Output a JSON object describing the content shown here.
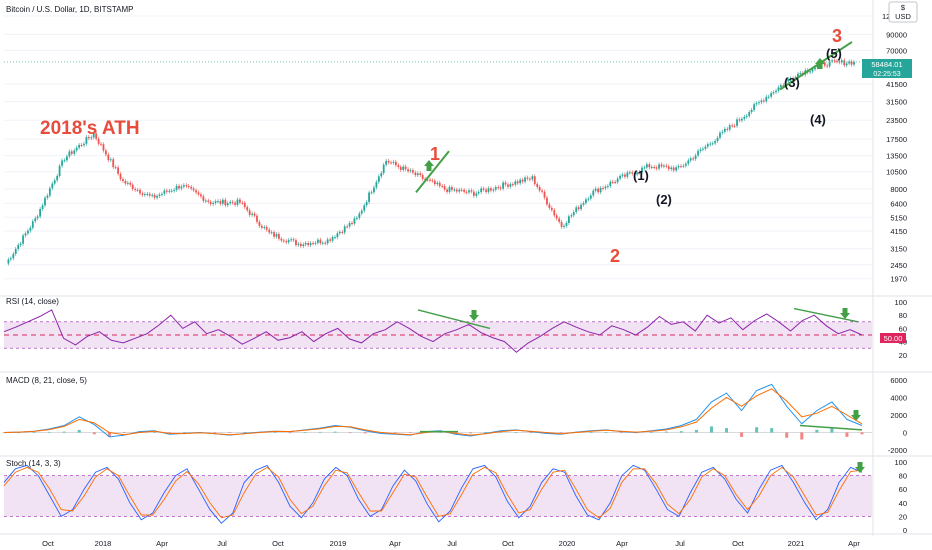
{
  "header": {
    "title": "Bitcoin / U.S. Dollar, 1D, BITSTAMP",
    "currency_symbol": "$",
    "currency": "USD"
  },
  "price_panel": {
    "last_price": "58484.01",
    "countdown": "02:25:53"
  },
  "annotations": {
    "ath": "2018's ATH",
    "wave1": "1",
    "wave2": "2",
    "wave3": "3",
    "sub1": "(1)",
    "sub2": "(2)",
    "sub3": "(3)",
    "sub4": "(4)",
    "sub5": "(5)"
  },
  "indicators": {
    "rsi": {
      "label": "RSI (14, close)",
      "current": "50.00",
      "ticks": [
        "100",
        "80",
        "60",
        "40",
        "20"
      ]
    },
    "macd": {
      "label": "MACD (8, 21, close, 5)",
      "ticks": [
        "6000",
        "4000",
        "2000",
        "0",
        "-2000"
      ]
    },
    "stoch": {
      "label": "Stoch (14, 3, 3)",
      "ticks": [
        "100",
        "80",
        "60",
        "40",
        "20",
        "0"
      ]
    }
  },
  "colors": {
    "price_up": "#26a69a",
    "price_down": "#ef5350",
    "rsi_line": "#8e24aa",
    "rsi_band": "#e1bee7",
    "macd_line": "#2196f3",
    "signal_line": "#ff6d00",
    "stoch_k": "#2962ff",
    "stoch_d": "#ff6d00",
    "annotation_red": "#e74c3c",
    "trendline_green": "#43a047",
    "arrow_green": "#43a047"
  },
  "chart_data": [
    {
      "type": "line",
      "name": "price",
      "scale": "log",
      "y_ticks": [
        120000,
        90000,
        70000,
        41500,
        31500,
        23500,
        17500,
        13500,
        10500,
        8000,
        6400,
        5150,
        4150,
        3150,
        2450,
        1970
      ],
      "y_tick_labels": [
        "120000",
        "90000",
        "70000",
        "41500",
        "31500",
        "23500",
        "17500",
        "13500",
        "10500",
        "8000",
        "6400",
        "5150",
        "4150",
        "3150",
        "2450",
        "1970"
      ],
      "x_tick_labels": [
        "Oct",
        "2018",
        "Apr",
        "Jul",
        "Oct",
        "2019",
        "Apr",
        "Jul",
        "Oct",
        "2020",
        "Apr",
        "Jul",
        "Oct",
        "2021",
        "Apr"
      ],
      "x": [
        "2017-08",
        "2017-10",
        "2017-12",
        "2018-01",
        "2018-02",
        "2018-04",
        "2018-05",
        "2018-07",
        "2018-09",
        "2018-11",
        "2018-12",
        "2019-02",
        "2019-04",
        "2019-06",
        "2019-07",
        "2019-09",
        "2019-11",
        "2020-01",
        "2020-02",
        "2020-03",
        "2020-04",
        "2020-06",
        "2020-08",
        "2020-10",
        "2020-11",
        "2020-12",
        "2021-01",
        "2021-02",
        "2021-03",
        "2021-04"
      ],
      "values": [
        2500,
        5000,
        13000,
        19000,
        9000,
        7000,
        8500,
        6500,
        6500,
        4000,
        3400,
        3600,
        5000,
        12500,
        10000,
        8000,
        7500,
        8500,
        9500,
        4500,
        7500,
        9500,
        11500,
        11000,
        16000,
        23000,
        34000,
        48000,
        57000,
        58484
      ],
      "last": 58484.01
    },
    {
      "type": "line",
      "name": "RSI",
      "ylim": [
        0,
        100
      ],
      "band": [
        30,
        70
      ],
      "midline": 50,
      "values": [
        55,
        62,
        70,
        78,
        88,
        45,
        35,
        48,
        55,
        42,
        38,
        45,
        52,
        65,
        80,
        60,
        70,
        52,
        58,
        48,
        36,
        45,
        55,
        42,
        46,
        55,
        40,
        52,
        60,
        44,
        38,
        52,
        58,
        70,
        60,
        48,
        40,
        52,
        58,
        66,
        54,
        46,
        40,
        24,
        38,
        48,
        60,
        70,
        62,
        55,
        50,
        64,
        58,
        50,
        62,
        78,
        66,
        70,
        56,
        80,
        68,
        76,
        58,
        72,
        82,
        70,
        56,
        72,
        80,
        64,
        52,
        58,
        50
      ],
      "x_tick_labels": [
        "Oct",
        "2018",
        "Apr",
        "Jul",
        "Oct",
        "2019",
        "Apr",
        "Jul",
        "Oct",
        "2020",
        "Apr",
        "Jul",
        "Oct",
        "2021",
        "Apr"
      ]
    },
    {
      "type": "line",
      "name": "MACD",
      "ylim": [
        -2000,
        6000
      ],
      "macd": [
        0,
        50,
        150,
        400,
        800,
        1800,
        900,
        -500,
        -300,
        100,
        200,
        -200,
        -100,
        0,
        -150,
        -300,
        -100,
        50,
        150,
        100,
        300,
        500,
        800,
        600,
        200,
        -100,
        -200,
        -300,
        100,
        200,
        -200,
        -400,
        -100,
        200,
        300,
        100,
        -100,
        -200,
        50,
        200,
        300,
        100,
        0,
        200,
        400,
        800,
        1500,
        3500,
        4500,
        2500,
        4800,
        5500,
        3000,
        1000,
        2500,
        3500,
        1500,
        800
      ],
      "signal": [
        0,
        40,
        120,
        330,
        700,
        1500,
        1100,
        0,
        -250,
        0,
        150,
        -100,
        -120,
        -20,
        -120,
        -250,
        -150,
        0,
        120,
        110,
        250,
        430,
        700,
        650,
        300,
        0,
        -150,
        -250,
        0,
        150,
        -100,
        -300,
        -150,
        100,
        250,
        150,
        0,
        -150,
        0,
        150,
        250,
        150,
        50,
        150,
        300,
        650,
        1200,
        2800,
        4000,
        3000,
        4200,
        5000,
        3600,
        1800,
        2200,
        3000,
        2000,
        1000
      ]
    },
    {
      "type": "line",
      "name": "Stoch",
      "ylim": [
        0,
        100
      ],
      "band": [
        20,
        80
      ],
      "k_values": [
        70,
        90,
        95,
        80,
        50,
        20,
        30,
        60,
        85,
        92,
        75,
        40,
        15,
        25,
        55,
        80,
        90,
        60,
        30,
        10,
        25,
        70,
        88,
        95,
        70,
        35,
        18,
        40,
        75,
        92,
        80,
        45,
        20,
        30,
        65,
        88,
        72,
        38,
        12,
        28,
        62,
        90,
        95,
        78,
        42,
        18,
        35,
        70,
        90,
        85,
        50,
        22,
        15,
        40,
        80,
        95,
        88,
        60,
        30,
        20,
        55,
        85,
        92,
        75,
        45,
        25,
        60,
        88,
        95,
        70,
        40,
        15,
        30,
        70,
        92,
        85
      ],
      "d_values": [
        65,
        85,
        92,
        85,
        60,
        30,
        28,
        50,
        78,
        90,
        80,
        50,
        22,
        22,
        45,
        72,
        86,
        68,
        40,
        18,
        22,
        55,
        82,
        92,
        78,
        45,
        24,
        35,
        65,
        88,
        84,
        55,
        28,
        28,
        55,
        82,
        78,
        48,
        20,
        24,
        52,
        82,
        92,
        84,
        52,
        25,
        30,
        60,
        85,
        88,
        60,
        30,
        18,
        32,
        70,
        90,
        90,
        68,
        38,
        24,
        45,
        78,
        90,
        80,
        52,
        30,
        50,
        80,
        92,
        78,
        50,
        22,
        26,
        58,
        86,
        88
      ]
    }
  ]
}
